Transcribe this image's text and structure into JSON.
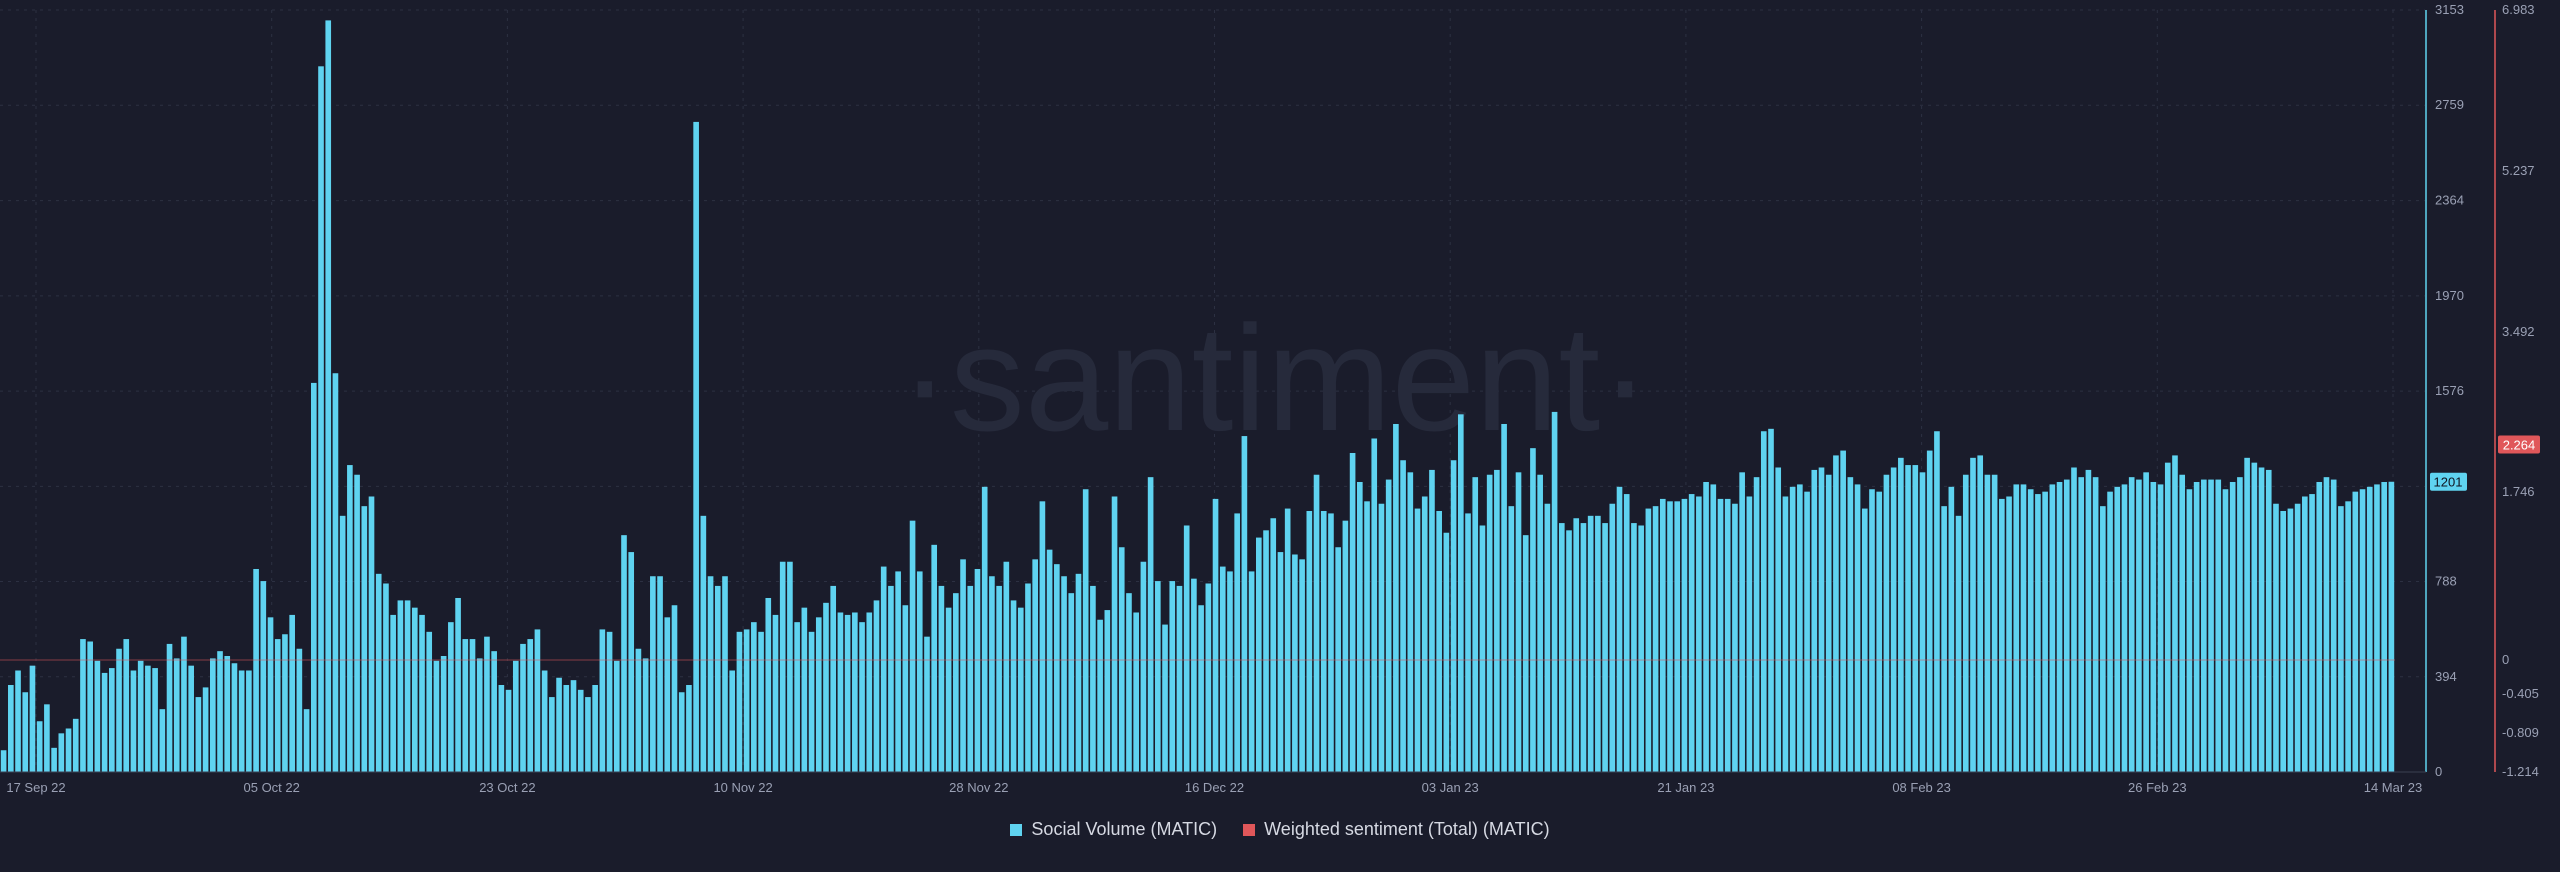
{
  "watermark": "·santiment·",
  "colors": {
    "background": "#1a1c2b",
    "volume": "#5fd3f0",
    "sentiment": "#e0575a",
    "grid": "#2c3042"
  },
  "legend": [
    {
      "label": "Social Volume (MATIC)",
      "color": "#5fd3f0"
    },
    {
      "label": "Weighted sentiment (Total) (MATIC)",
      "color": "#e0575a"
    }
  ],
  "chart_data": {
    "type": "bar",
    "x_ticks": [
      "17 Sep 22",
      "05 Oct 22",
      "23 Oct 22",
      "10 Nov 22",
      "28 Nov 22",
      "16 Dec 22",
      "03 Jan 23",
      "21 Jan 23",
      "08 Feb 23",
      "26 Feb 23",
      "14 Mar 23"
    ],
    "x_range": [
      "2022-09-16",
      "2023-03-14"
    ],
    "y_left": {
      "ticks": [
        "3153",
        "2759",
        "2364",
        "1970",
        "1576",
        "1182",
        "788",
        "394",
        "0"
      ],
      "ylim": [
        0,
        3153
      ]
    },
    "y_right": {
      "ticks": [
        "6.983",
        "5.237",
        "3.492",
        "1.746",
        "0",
        "-0.405",
        "-0.809",
        "-1.214"
      ]
    },
    "current_labels": {
      "volume": "1201",
      "sentiment": "2.264"
    },
    "series": [
      {
        "name": "Social Volume (MATIC)",
        "kind": "bar",
        "values": [
          90,
          360,
          420,
          330,
          440,
          210,
          280,
          100,
          160,
          180,
          220,
          550,
          540,
          460,
          410,
          430,
          510,
          550,
          420,
          460,
          440,
          430,
          260,
          530,
          470,
          560,
          440,
          310,
          350,
          470,
          500,
          480,
          450,
          420,
          420,
          840,
          790,
          640,
          550,
          570,
          650,
          510,
          260,
          1610,
          2920,
          3110,
          1650,
          1060,
          1270,
          1230,
          1100,
          1140,
          820,
          780,
          650,
          710,
          710,
          680,
          650,
          580,
          460,
          480,
          620,
          720,
          550,
          550,
          470,
          560,
          500,
          360,
          340,
          460,
          530,
          550,
          590,
          420,
          310,
          390,
          360,
          380,
          340,
          310,
          360,
          590,
          580,
          460,
          980,
          910,
          510,
          470,
          810,
          810,
          640,
          690,
          330,
          360,
          2690,
          1060,
          810,
          770,
          810,
          420,
          580,
          590,
          620,
          580,
          720,
          650,
          870,
          870,
          620,
          680,
          580,
          640,
          700,
          770,
          660,
          650,
          660,
          620,
          660,
          710,
          850,
          770,
          830,
          690,
          1040,
          830,
          560,
          940,
          770,
          680,
          740,
          880,
          770,
          840,
          1180,
          810,
          770,
          870,
          710,
          680,
          780,
          880,
          1120,
          920,
          860,
          810,
          740,
          820,
          1170,
          770,
          630,
          670,
          1140,
          930,
          740,
          660,
          870,
          1220,
          790,
          610,
          790,
          770,
          1020,
          800,
          690,
          780,
          1130,
          850,
          830,
          1070,
          1390,
          830,
          970,
          1000,
          1050,
          910,
          1090,
          900,
          880,
          1080,
          1230,
          1080,
          1070,
          930,
          1040,
          1320,
          1200,
          1120,
          1380,
          1110,
          1210,
          1440,
          1290,
          1240,
          1090,
          1140,
          1250,
          1080,
          990,
          1290,
          1480,
          1070,
          1220,
          1020,
          1230,
          1250,
          1440,
          1100,
          1240,
          980,
          1340,
          1230,
          1110,
          1490,
          1030,
          1000,
          1050,
          1030,
          1060,
          1060,
          1030,
          1110,
          1180,
          1150,
          1030,
          1020,
          1090,
          1100,
          1130,
          1120,
          1120,
          1130,
          1150,
          1140,
          1200,
          1190,
          1130,
          1130,
          1110,
          1240,
          1140,
          1220,
          1410,
          1420,
          1260,
          1140,
          1180,
          1190,
          1160,
          1250,
          1260,
          1230,
          1310,
          1330,
          1220,
          1190,
          1090,
          1170,
          1160,
          1230,
          1260,
          1300,
          1270,
          1270,
          1240,
          1330,
          1410,
          1100,
          1180,
          1060,
          1230,
          1300,
          1310,
          1230,
          1230,
          1130,
          1140,
          1190,
          1190,
          1170,
          1150,
          1160,
          1190,
          1200,
          1210,
          1260,
          1220,
          1250,
          1220,
          1100,
          1160,
          1180,
          1190,
          1220,
          1210,
          1240,
          1200,
          1190,
          1280,
          1310,
          1230,
          1170,
          1200,
          1210,
          1210,
          1210,
          1170,
          1200,
          1220,
          1300,
          1280,
          1260,
          1250,
          1110,
          1080,
          1090,
          1110,
          1140,
          1150,
          1200,
          1220,
          1210,
          1100,
          1120,
          1160,
          1170,
          1180,
          1190,
          1200,
          1201
        ]
      },
      {
        "name": "Weighted sentiment (Total) (MATIC)",
        "kind": "line",
        "values": []
      }
    ]
  }
}
